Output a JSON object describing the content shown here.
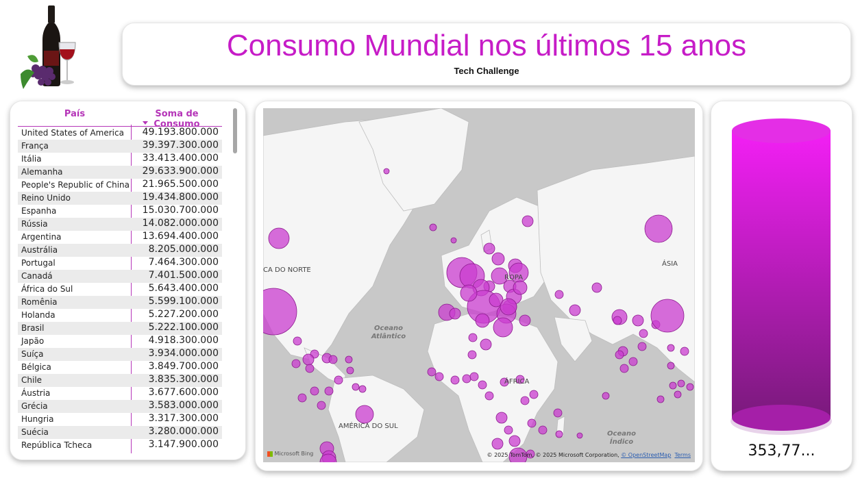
{
  "title": "Consumo Mundial nos últimos 15 anos",
  "subtitle": "Tech Challenge",
  "table": {
    "headers": [
      "País",
      "Soma de Consumo"
    ],
    "rows": [
      [
        "United States of America",
        "49.193.800.000"
      ],
      [
        "França",
        "39.397.300.000"
      ],
      [
        "Itália",
        "33.413.400.000"
      ],
      [
        "Alemanha",
        "29.633.900.000"
      ],
      [
        "People's Republic of China",
        "21.965.500.000"
      ],
      [
        "Reino Unido",
        "19.434.800.000"
      ],
      [
        "Espanha",
        "15.030.700.000"
      ],
      [
        "Rússia",
        "14.082.000.000"
      ],
      [
        "Argentina",
        "13.694.400.000"
      ],
      [
        "Austrália",
        "8.205.000.000"
      ],
      [
        "Portugal",
        "7.464.300.000"
      ],
      [
        "Canadá",
        "7.401.500.000"
      ],
      [
        "África do Sul",
        "5.643.400.000"
      ],
      [
        "Romênia",
        "5.599.100.000"
      ],
      [
        "Holanda",
        "5.227.200.000"
      ],
      [
        "Brasil",
        "5.222.100.000"
      ],
      [
        "Japão",
        "4.918.300.000"
      ],
      [
        "Suíça",
        "3.934.000.000"
      ],
      [
        "Bélgica",
        "3.849.700.000"
      ],
      [
        "Chile",
        "3.835.300.000"
      ],
      [
        "Áustria",
        "3.677.600.000"
      ],
      [
        "Grécia",
        "3.583.000.000"
      ],
      [
        "Hungria",
        "3.317.300.000"
      ],
      [
        "Suécia",
        "3.280.000.000"
      ],
      [
        "República Tcheca",
        "3.147.900.000"
      ]
    ]
  },
  "map": {
    "labels": {
      "north_america": "CA DO NORTE",
      "europe": "ROPA",
      "asia": "ÁSIA",
      "africa": "ÁFRICA",
      "south_america": "AMÉRICA DO SUL",
      "atlantic": "Oceano Atlântico",
      "indian": "Oceano Índico"
    },
    "bing_logo": "Microsoft Bing",
    "attribution": "© 2025 TomTom, © 2025 Microsoft Corporation,",
    "osm_link": "© OpenStreetMap",
    "terms_link": "Terms",
    "bubble_color": "#c93ccf"
  },
  "gauge": {
    "value_label": "353,77...",
    "fill_fraction": 1.0,
    "top_color": "#f31ff5",
    "bottom_color": "#7a1a7c"
  }
}
